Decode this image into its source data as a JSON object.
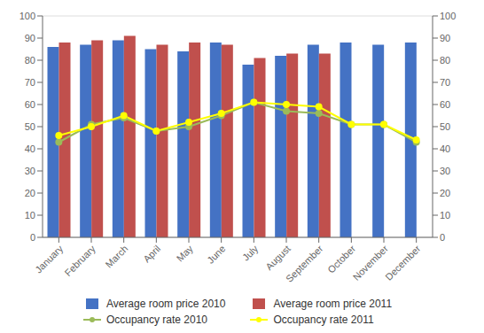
{
  "chart_data": {
    "type": "bar",
    "categories": [
      "January",
      "February",
      "March",
      "April",
      "May",
      "June",
      "July",
      "August",
      "September",
      "October",
      "November",
      "December"
    ],
    "series": [
      {
        "name": "Average room price 2010",
        "type": "bar",
        "color": "#4472C4",
        "values": [
          86,
          87,
          89,
          85,
          84,
          88,
          78,
          82,
          87,
          88,
          87,
          88
        ]
      },
      {
        "name": "Average room price 2011",
        "type": "bar",
        "color": "#C0504D",
        "values": [
          88,
          89,
          91,
          87,
          88,
          87,
          81,
          83,
          83,
          0,
          0,
          0
        ]
      },
      {
        "name": "Occupancy rate 2010",
        "type": "line",
        "axis": "y2",
        "marker": "circle",
        "color": "#9BBB59",
        "values": [
          43,
          51,
          54,
          48,
          50,
          55,
          61,
          57,
          56,
          51,
          51,
          43
        ]
      },
      {
        "name": "Occupancy rate 2011",
        "type": "line",
        "axis": "y2",
        "marker": "circle",
        "color": "#FFFF00",
        "values": [
          46,
          50,
          55,
          48,
          52,
          56,
          61,
          60,
          59,
          51,
          51,
          44
        ]
      }
    ],
    "ylim": [
      0,
      100
    ],
    "yticks": [
      0,
      10,
      20,
      30,
      40,
      50,
      60,
      70,
      80,
      90,
      100
    ],
    "y2lim": [
      0,
      100
    ],
    "y2ticks": [
      0,
      10,
      20,
      30,
      40,
      50,
      60,
      70,
      80,
      90,
      100
    ],
    "grid": true,
    "legend": "bottom"
  }
}
